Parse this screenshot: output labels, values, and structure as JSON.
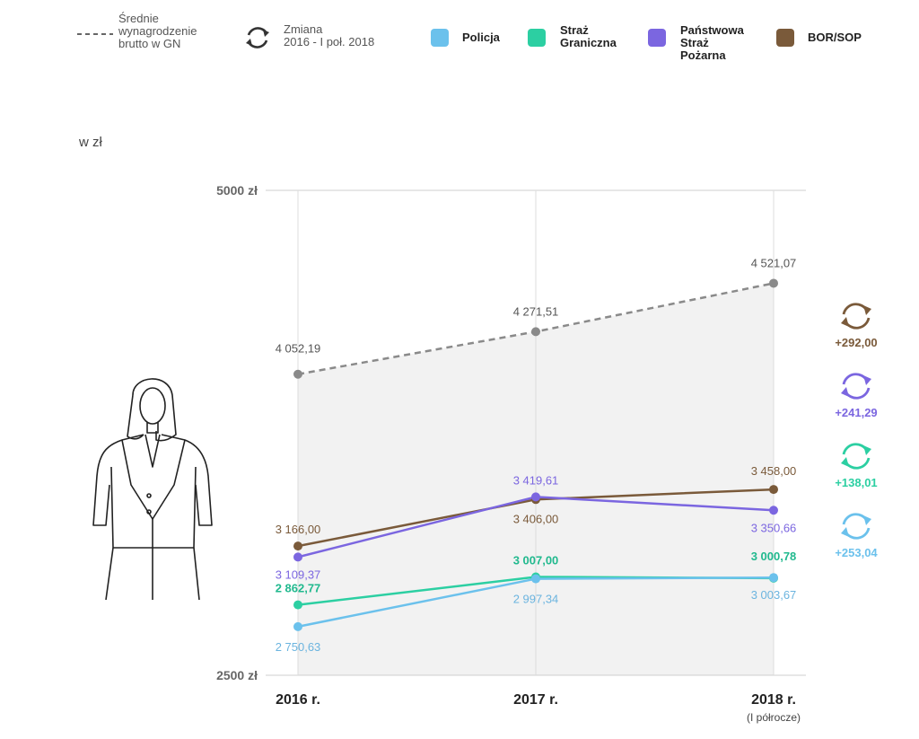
{
  "legend": {
    "avg_label": "Średnie\nwynagrodzenie\nbrutto w GN",
    "change_label": "Zmiana\n2016 - I poł. 2018",
    "series_labels": [
      "Policja",
      "Straż\nGraniczna",
      "Państwowa\nStraż\nPożarna",
      "BOR/SOP"
    ]
  },
  "unit_label": "w zł",
  "chart_data": {
    "type": "line",
    "title": "",
    "xlabel": "",
    "ylabel": "w zł",
    "ylim": [
      2500,
      5000
    ],
    "y_tick_labels": [
      "5000 zł",
      "2500 zł"
    ],
    "categories": [
      "2016 r.",
      "2017 r.",
      "2018 r."
    ],
    "category_sublabels": [
      "",
      "",
      "(I półrocze)"
    ],
    "grid": true,
    "series": [
      {
        "name": "Średnie wynagrodzenie brutto w GN",
        "color": "#8a8a8a",
        "dashed": true,
        "values": [
          4052.19,
          4271.51,
          4521.07
        ],
        "labels": [
          "4 052,19",
          "4 271,51",
          "4 521,07"
        ]
      },
      {
        "name": "BOR/SOP",
        "color": "#7a5a3a",
        "values": [
          3166.0,
          3406.0,
          3458.0
        ],
        "labels": [
          "3 166,00",
          "3 406,00",
          "3 458,00"
        ]
      },
      {
        "name": "Państwowa Straż Pożarna",
        "color": "#7b66e0",
        "values": [
          3109.37,
          3419.61,
          3350.66
        ],
        "labels": [
          "3 109,37",
          "3 419,61",
          "3 350,66"
        ]
      },
      {
        "name": "Straż Graniczna",
        "color": "#2ccfa2",
        "values": [
          2862.77,
          3007.0,
          3000.78
        ],
        "labels": [
          "2 862,77",
          "3 007,00",
          "3 000,78"
        ]
      },
      {
        "name": "Policja",
        "color": "#6bc1ec",
        "values": [
          2750.63,
          2997.34,
          3003.67
        ],
        "labels": [
          "2 750,63",
          "2 997,34",
          "3 003,67"
        ]
      }
    ],
    "changes": [
      {
        "series": "BOR/SOP",
        "label": "+292,00",
        "color": "#7a5a3a"
      },
      {
        "series": "Państwowa Straż Pożarna",
        "label": "+241,29",
        "color": "#7b66e0"
      },
      {
        "series": "Straż Graniczna",
        "label": "+138,01",
        "color": "#2ccfa2"
      },
      {
        "series": "Policja",
        "label": "+253,04",
        "color": "#6bc1ec"
      }
    ]
  }
}
